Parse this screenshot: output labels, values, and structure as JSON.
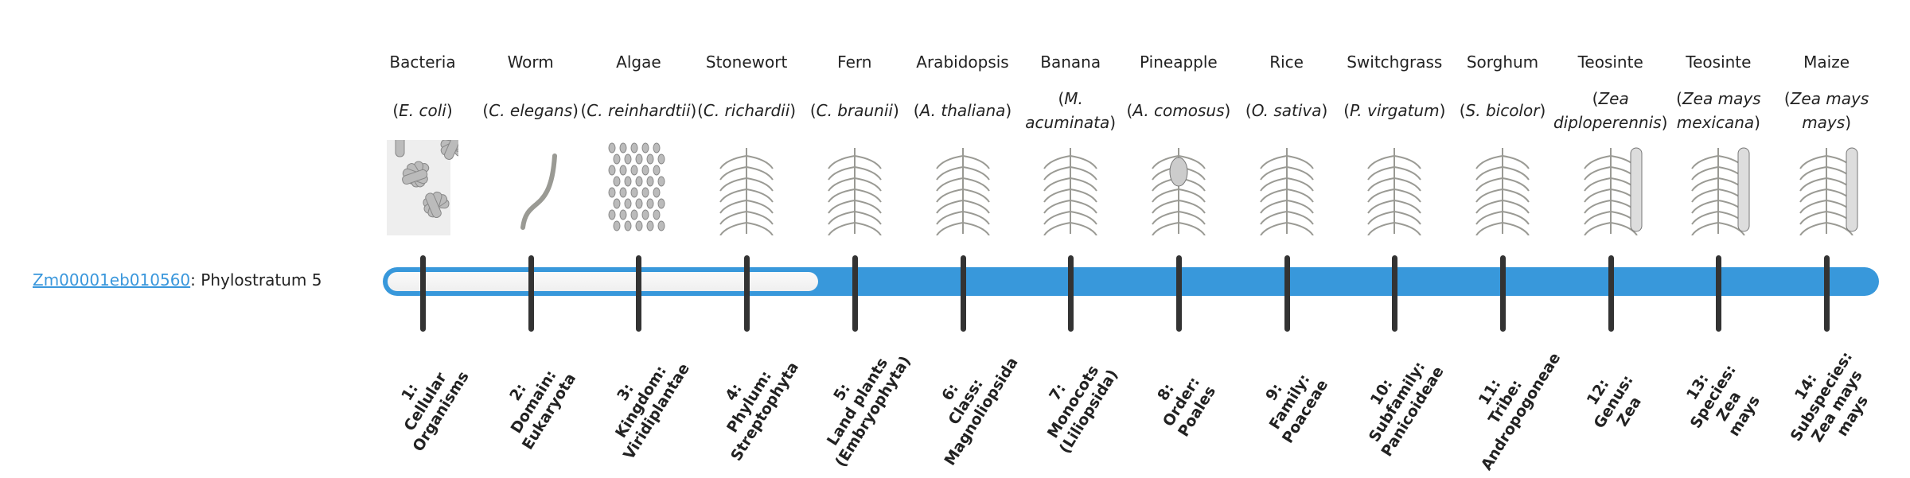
{
  "gene": {
    "id": "Zm00001eb010560",
    "suffix": ": Phylostratum 5",
    "phylostratum": 5
  },
  "colors": {
    "accent": "#3898db",
    "tick": "#333333",
    "link": "#3a97dc"
  },
  "organisms": [
    {
      "name": "Bacteria",
      "sci": "E. coli",
      "icon": "bacteria-icon"
    },
    {
      "name": "Worm",
      "sci": "C. elegans",
      "icon": "worm-icon"
    },
    {
      "name": "Algae",
      "sci": "C. reinhardtii",
      "icon": "algae-icon"
    },
    {
      "name": "Stonewort",
      "sci": "C. richardii",
      "icon": "stonewort-icon"
    },
    {
      "name": "Fern",
      "sci": "C. braunii",
      "icon": "fern-icon"
    },
    {
      "name": "Arabidopsis",
      "sci": "A. thaliana",
      "icon": "arabidopsis-icon"
    },
    {
      "name": "Banana",
      "sci": "M. acuminata",
      "icon": "banana-icon"
    },
    {
      "name": "Pineapple",
      "sci": "A. comosus",
      "icon": "pineapple-icon"
    },
    {
      "name": "Rice",
      "sci": "O. sativa",
      "icon": "rice-icon"
    },
    {
      "name": "Switchgrass",
      "sci": "P. virgatum",
      "icon": "switchgrass-icon"
    },
    {
      "name": "Sorghum",
      "sci": "S. bicolor",
      "icon": "sorghum-icon"
    },
    {
      "name": "Teosinte",
      "sci": "Zea diploperennis",
      "icon": "teosinte-icon"
    },
    {
      "name": "Teosinte",
      "sci": "Zea mays mexicana",
      "icon": "teosinte-icon"
    },
    {
      "name": "Maize",
      "sci": "Zea mays mays",
      "icon": "maize-icon"
    }
  ],
  "strata": [
    [
      "1:",
      "Cellular",
      "Organisms"
    ],
    [
      "2:",
      "Domain:",
      "Eukaryota"
    ],
    [
      "3:",
      "Kingdom:",
      "Viridiplantae"
    ],
    [
      "4:",
      "Phylum:",
      "Streptophyta"
    ],
    [
      "5:",
      "Land plants",
      "(Embryophyta)"
    ],
    [
      "6:",
      "Class:",
      "Magnoliopsida"
    ],
    [
      "7:",
      "Monocots",
      "(Liliopsida)"
    ],
    [
      "8:",
      "Order:",
      "Poales"
    ],
    [
      "9:",
      "Family:",
      "Poaceae"
    ],
    [
      "10:",
      "Subfamily:",
      "Panicoideae"
    ],
    [
      "11:",
      "Tribe:",
      "Andropogoneae"
    ],
    [
      "12:",
      "Genus:",
      "Zea"
    ],
    [
      "13:",
      "Species:",
      "Zea",
      "mays"
    ],
    [
      "14:",
      "Subspecies:",
      "Zea mays",
      "mays"
    ]
  ]
}
